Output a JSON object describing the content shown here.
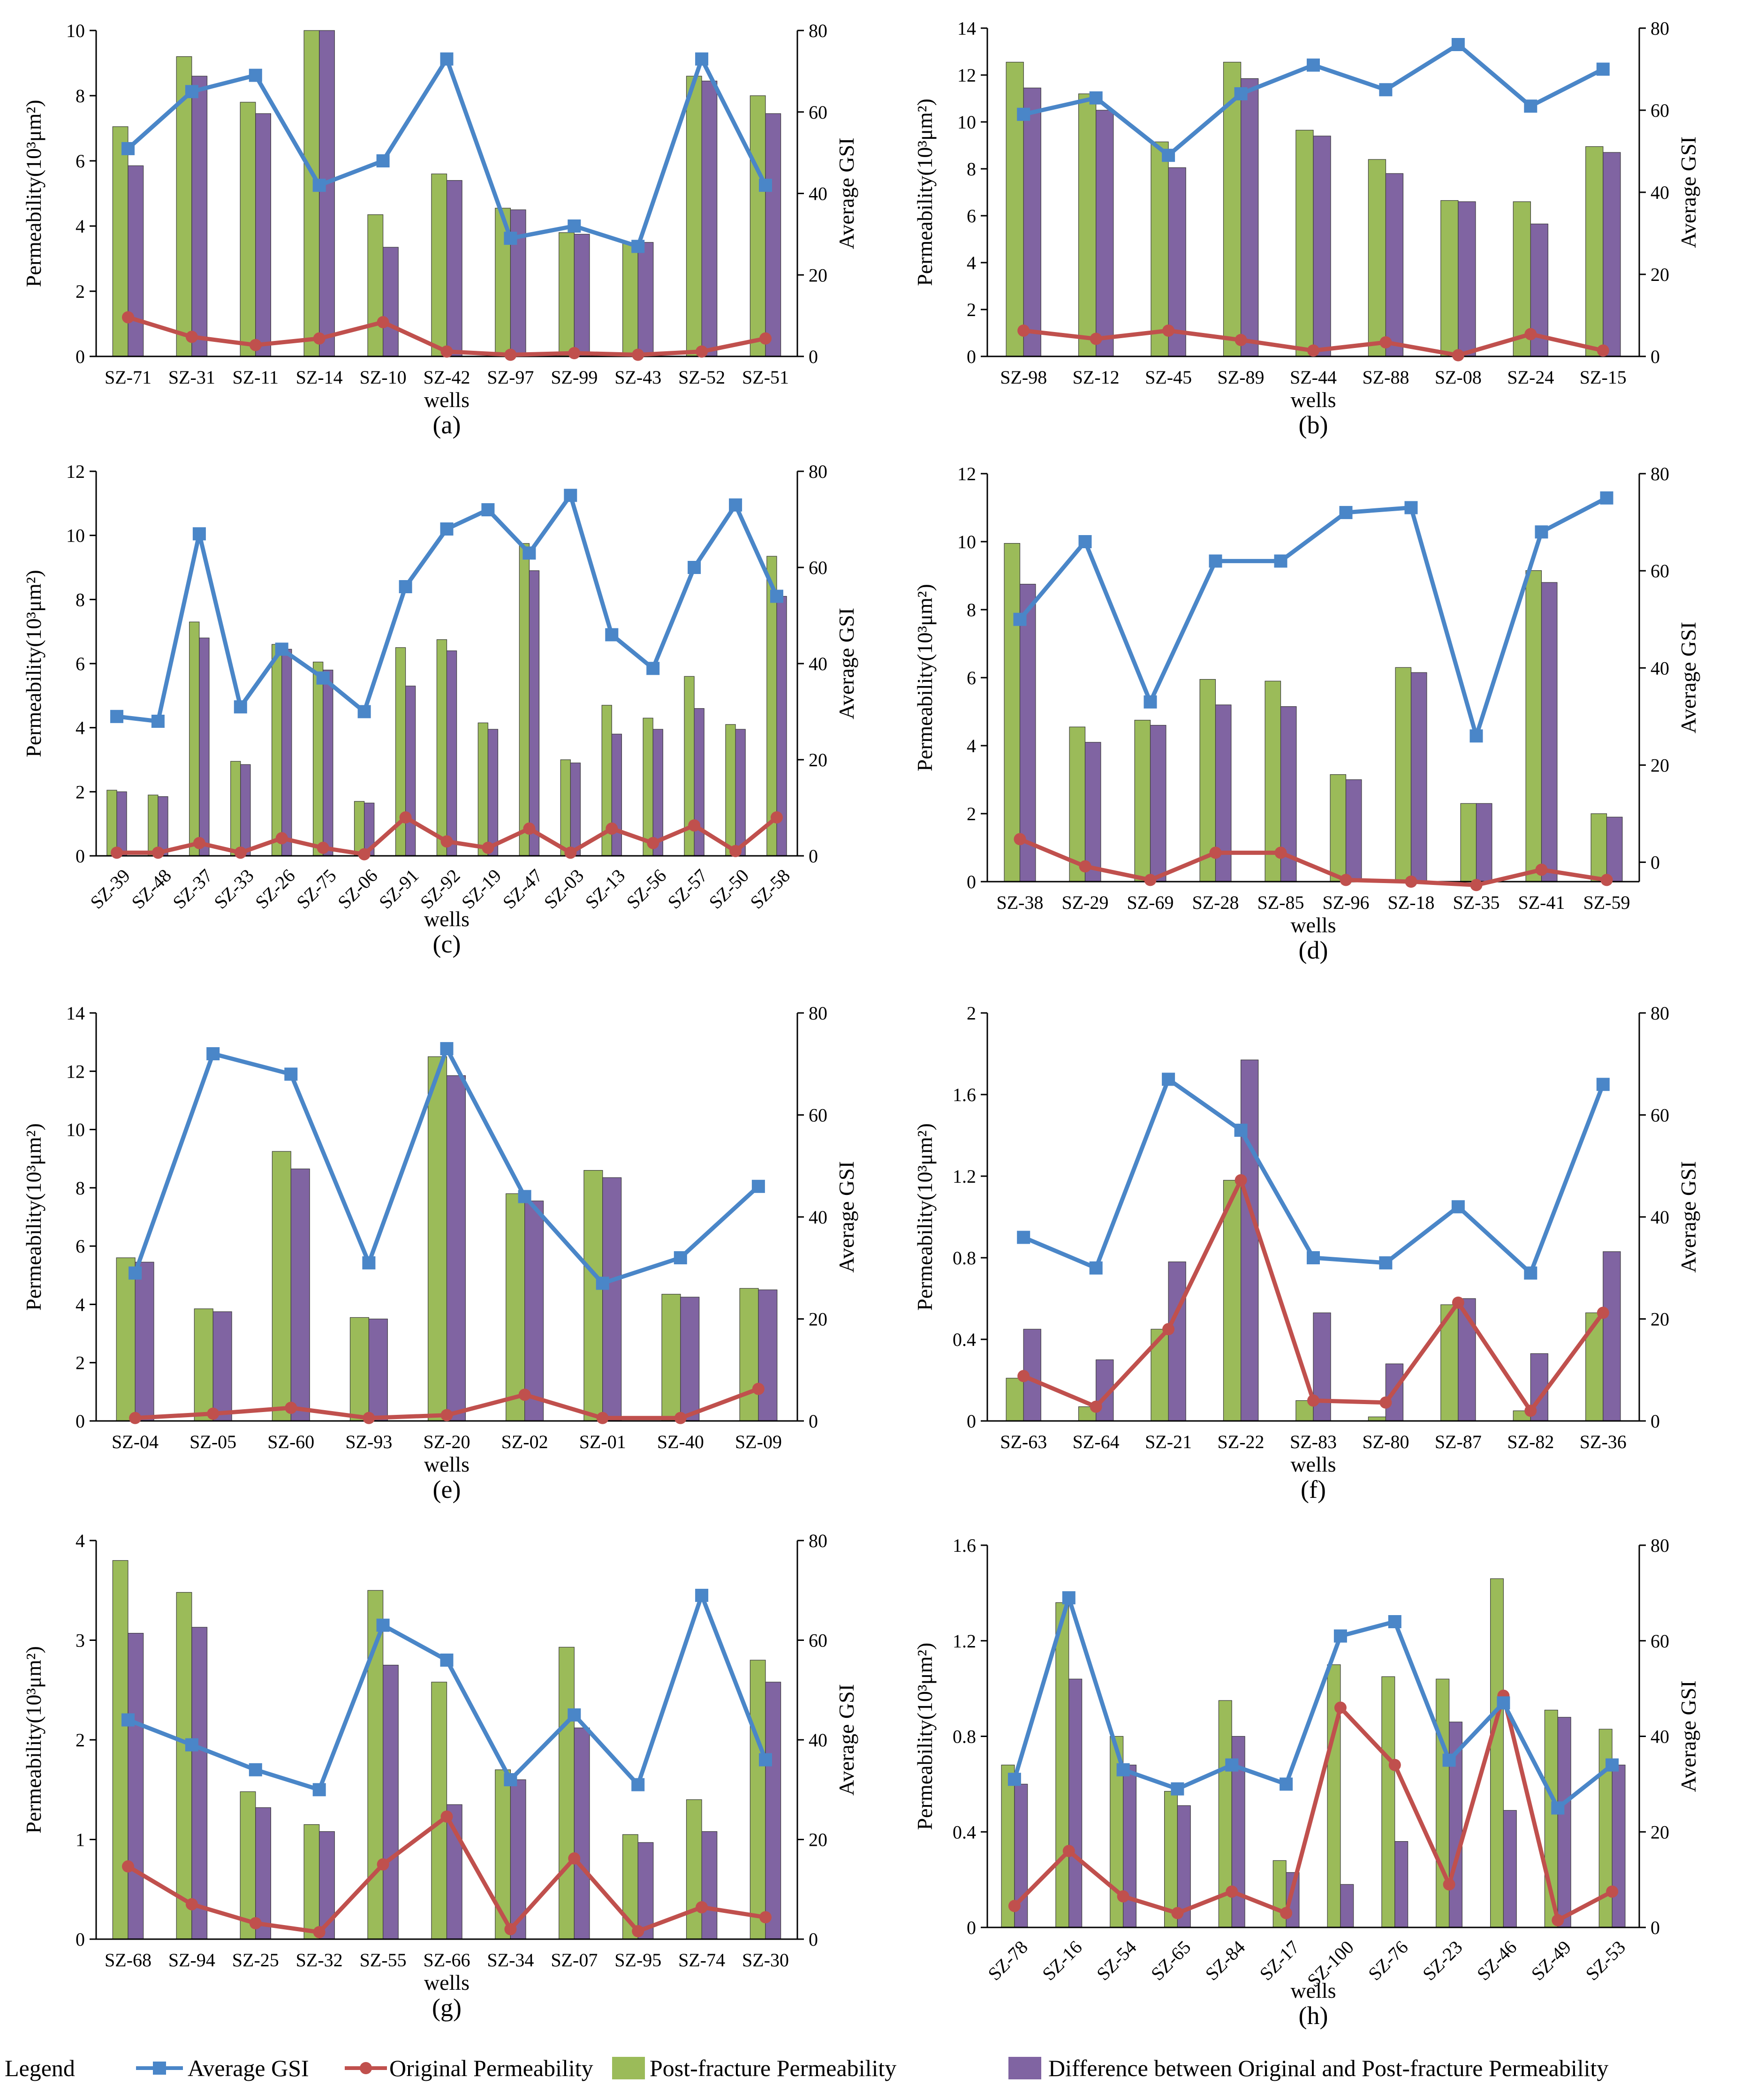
{
  "colors": {
    "gsi": "#4A86C8",
    "original": "#C0504D",
    "post": "#9BBB59",
    "difference": "#8064A2"
  },
  "legend": {
    "title": "Legend",
    "items": [
      {
        "key": "gsi",
        "label": "Average GSI"
      },
      {
        "key": "original",
        "label": "Original Permeability"
      },
      {
        "key": "post",
        "label": "Post-fracture Permeability"
      },
      {
        "key": "difference",
        "label": "Difference between Original and Post-fracture Permeability"
      }
    ]
  },
  "chart_data": [
    {
      "type": "bar+line",
      "label": "(a)",
      "xlabel": "wells",
      "ylabel_left": "Permeability(10³μm²)",
      "ylabel_right": "Average GSI",
      "ylim_left": [
        0,
        10
      ],
      "ylim_right": [
        0,
        80
      ],
      "left_ticks": [
        0,
        2,
        4,
        6,
        8,
        10
      ],
      "right_ticks": [
        0,
        20,
        40,
        60,
        80
      ],
      "categories": [
        "SZ-71",
        "SZ-31",
        "SZ-11",
        "SZ-14",
        "SZ-10",
        "SZ-42",
        "SZ-97",
        "SZ-99",
        "SZ-43",
        "SZ-52",
        "SZ-51"
      ],
      "post": [
        7.05,
        9.2,
        7.8,
        10.0,
        4.35,
        5.6,
        4.55,
        3.8,
        3.5,
        8.6,
        8.0
      ],
      "difference": [
        5.85,
        8.6,
        7.45,
        10.0,
        3.35,
        5.4,
        4.5,
        3.75,
        3.5,
        8.45,
        7.45
      ],
      "original": [
        1.2,
        0.6,
        0.35,
        0.55,
        1.05,
        0.15,
        0.05,
        0.1,
        0.05,
        0.15,
        0.55
      ],
      "gsi": [
        51,
        65,
        69,
        42,
        48,
        73,
        29,
        32,
        27,
        73,
        42
      ],
      "xlabel_rotated": false
    },
    {
      "type": "bar+line",
      "label": "(b)",
      "xlabel": "wells",
      "ylabel_left": "Permeability(10³μm²)",
      "ylabel_right": "Average GSI",
      "ylim_left": [
        0,
        14
      ],
      "ylim_right": [
        0,
        80
      ],
      "left_ticks": [
        0,
        2,
        4,
        6,
        8,
        10,
        12,
        14
      ],
      "right_ticks": [
        0,
        20,
        40,
        60,
        80
      ],
      "categories": [
        "SZ-98",
        "SZ-12",
        "SZ-45",
        "SZ-89",
        "SZ-44",
        "SZ-88",
        "SZ-08",
        "SZ-24",
        "SZ-15"
      ],
      "post": [
        12.55,
        11.2,
        9.15,
        12.55,
        9.65,
        8.4,
        6.65,
        6.6,
        8.95
      ],
      "difference": [
        11.45,
        10.5,
        8.05,
        11.85,
        9.4,
        7.8,
        6.6,
        5.65,
        8.7
      ],
      "original": [
        1.1,
        0.75,
        1.1,
        0.7,
        0.25,
        0.6,
        0.05,
        0.95,
        0.25
      ],
      "gsi": [
        59,
        63,
        49,
        64,
        71,
        65,
        76,
        61,
        70
      ],
      "xlabel_rotated": false
    },
    {
      "type": "bar+line",
      "label": "(c)",
      "xlabel": "wells",
      "ylabel_left": "Permeability(10³μm²)",
      "ylabel_right": "Average GSI",
      "ylim_left": [
        0,
        12
      ],
      "ylim_right": [
        0,
        80
      ],
      "left_ticks": [
        0,
        2,
        4,
        6,
        8,
        10,
        12
      ],
      "right_ticks": [
        0,
        20,
        40,
        60,
        80
      ],
      "categories": [
        "SZ-39",
        "SZ-48",
        "SZ-37",
        "SZ-33",
        "SZ-26",
        "SZ-75",
        "SZ-06",
        "SZ-91",
        "SZ-92",
        "SZ-19",
        "SZ-47",
        "SZ-03",
        "SZ-13",
        "SZ-56",
        "SZ-57",
        "SZ-50",
        "SZ-58"
      ],
      "post": [
        2.05,
        1.9,
        7.3,
        2.95,
        6.6,
        6.05,
        1.7,
        6.5,
        6.75,
        4.15,
        9.75,
        3.0,
        4.7,
        4.3,
        5.6,
        4.1,
        9.35
      ],
      "difference": [
        2.0,
        1.85,
        6.8,
        2.85,
        6.45,
        5.8,
        1.65,
        5.3,
        6.4,
        3.95,
        8.9,
        2.9,
        3.8,
        3.95,
        4.6,
        3.95,
        8.1
      ],
      "original": [
        0.1,
        0.1,
        0.4,
        0.1,
        0.55,
        0.25,
        0.05,
        1.2,
        0.45,
        0.25,
        0.85,
        0.1,
        0.85,
        0.4,
        0.95,
        0.15,
        1.2
      ],
      "gsi": [
        29,
        28,
        67,
        31,
        43,
        37,
        30,
        56,
        68,
        72,
        63,
        75,
        46,
        39,
        60,
        73,
        54
      ],
      "xlabel_rotated": true
    },
    {
      "type": "bar+line",
      "label": "(d)",
      "xlabel": "wells",
      "ylabel_left": "Permeability(10³μm²)",
      "ylabel_right": "Average GSI",
      "ylim_left": [
        0,
        12
      ],
      "ylim_right": [
        -4,
        80
      ],
      "left_ticks": [
        0,
        2,
        4,
        6,
        8,
        10,
        12
      ],
      "right_ticks": [
        0,
        20,
        40,
        60,
        80
      ],
      "categories": [
        "SZ-38",
        "SZ-29",
        "SZ-69",
        "SZ-28",
        "SZ-85",
        "SZ-96",
        "SZ-18",
        "SZ-35",
        "SZ-41",
        "SZ-59"
      ],
      "post": [
        9.95,
        4.55,
        4.75,
        5.95,
        5.9,
        3.15,
        6.3,
        2.3,
        9.15,
        2.0
      ],
      "difference": [
        8.75,
        4.1,
        4.6,
        5.2,
        5.15,
        3.0,
        6.15,
        2.3,
        8.8,
        1.9
      ],
      "original": [
        1.25,
        0.45,
        0.05,
        0.85,
        0.85,
        0.05,
        0.0,
        -0.1,
        0.35,
        0.05
      ],
      "gsi": [
        50,
        66,
        33,
        62,
        62,
        72,
        73,
        26,
        68,
        75
      ],
      "xlabel_rotated": false
    },
    {
      "type": "bar+line",
      "label": "(e)",
      "xlabel": "wells",
      "ylabel_left": "Permeability(10³μm²)",
      "ylabel_right": "Average GSI",
      "ylim_left": [
        0,
        14
      ],
      "ylim_right": [
        0,
        80
      ],
      "left_ticks": [
        0,
        2,
        4,
        6,
        8,
        10,
        12,
        14
      ],
      "right_ticks": [
        0,
        20,
        40,
        60,
        80
      ],
      "categories": [
        "SZ-04",
        "SZ-05",
        "SZ-60",
        "SZ-93",
        "SZ-20",
        "SZ-02",
        "SZ-01",
        "SZ-40",
        "SZ-09"
      ],
      "post": [
        5.6,
        3.85,
        9.25,
        3.55,
        12.5,
        7.8,
        8.6,
        4.35,
        4.55
      ],
      "difference": [
        5.45,
        3.75,
        8.65,
        3.5,
        11.85,
        7.55,
        8.35,
        4.25,
        4.5
      ],
      "original": [
        0.1,
        0.25,
        0.45,
        0.1,
        0.2,
        0.9,
        0.1,
        0.1,
        1.1
      ],
      "gsi": [
        29,
        72,
        68,
        31,
        73,
        44,
        27,
        32,
        46
      ],
      "xlabel_rotated": false
    },
    {
      "type": "bar+line",
      "label": "(f)",
      "xlabel": "wells",
      "ylabel_left": "Permeability(10³μm²)",
      "ylabel_right": "Average GSI",
      "ylim_left": [
        0,
        2
      ],
      "ylim_right": [
        0,
        80
      ],
      "left_ticks": [
        0,
        0.4,
        0.8,
        1.2,
        1.6,
        2
      ],
      "right_ticks": [
        0,
        20,
        40,
        60,
        80
      ],
      "categories": [
        "SZ-63",
        "SZ-64",
        "SZ-21",
        "SZ-22",
        "SZ-83",
        "SZ-80",
        "SZ-87",
        "SZ-82",
        "SZ-36"
      ],
      "post": [
        0.21,
        0.07,
        0.45,
        1.18,
        0.1,
        0.02,
        0.57,
        0.05,
        0.53
      ],
      "difference": [
        0.45,
        0.3,
        0.78,
        1.77,
        0.53,
        0.28,
        0.6,
        0.33,
        0.83
      ],
      "original": [
        0.22,
        0.07,
        0.45,
        1.18,
        0.1,
        0.09,
        0.58,
        0.05,
        0.53
      ],
      "gsi": [
        36,
        30,
        67,
        57,
        32,
        31,
        42,
        29,
        66
      ],
      "xlabel_rotated": false
    },
    {
      "type": "bar+line",
      "label": "(g)",
      "xlabel": "wells",
      "ylabel_left": "Permeability(10³μm²)",
      "ylabel_right": "Average GSI",
      "ylim_left": [
        0,
        4
      ],
      "ylim_right": [
        0,
        80
      ],
      "left_ticks": [
        0,
        1,
        2,
        3,
        4
      ],
      "right_ticks": [
        0,
        20,
        40,
        60,
        80
      ],
      "categories": [
        "SZ-68",
        "SZ-94",
        "SZ-25",
        "SZ-32",
        "SZ-55",
        "SZ-66",
        "SZ-34",
        "SZ-07",
        "SZ-95",
        "SZ-74",
        "SZ-30"
      ],
      "post": [
        3.8,
        3.48,
        1.48,
        1.15,
        3.5,
        2.58,
        1.7,
        2.93,
        1.05,
        1.4,
        2.8
      ],
      "difference": [
        3.07,
        3.13,
        1.32,
        1.08,
        2.75,
        1.35,
        1.6,
        2.12,
        0.97,
        1.08,
        2.58
      ],
      "original": [
        0.73,
        0.35,
        0.16,
        0.07,
        0.75,
        1.23,
        0.1,
        0.81,
        0.08,
        0.32,
        0.22
      ],
      "gsi": [
        44,
        39,
        34,
        30,
        63,
        56,
        32,
        45,
        31,
        69,
        36
      ],
      "xlabel_rotated": false
    },
    {
      "type": "bar+line",
      "label": "(h)",
      "xlabel": "wells",
      "ylabel_left": "Permeability(10³μm²)",
      "ylabel_right": "Average GSI",
      "ylim_left": [
        0,
        1.6
      ],
      "ylim_right": [
        0,
        80
      ],
      "left_ticks": [
        0,
        0.4,
        0.8,
        1.2,
        1.6
      ],
      "right_ticks": [
        0,
        20,
        40,
        60,
        80
      ],
      "categories": [
        "SZ-78",
        "SZ-16",
        "SZ-54",
        "SZ-65",
        "SZ-84",
        "SZ-17",
        "SZ-100",
        "SZ-76",
        "SZ-23",
        "SZ-46",
        "SZ-49",
        "SZ-53"
      ],
      "post": [
        0.68,
        1.36,
        0.8,
        0.57,
        0.95,
        0.28,
        1.1,
        1.05,
        1.04,
        1.46,
        0.91,
        0.83
      ],
      "difference": [
        0.6,
        1.04,
        0.68,
        0.51,
        0.8,
        0.23,
        0.18,
        0.36,
        0.86,
        0.49,
        0.88,
        0.68
      ],
      "original": [
        0.09,
        0.32,
        0.13,
        0.06,
        0.15,
        0.06,
        0.92,
        0.68,
        0.18,
        0.97,
        0.03,
        0.15
      ],
      "gsi": [
        31,
        69,
        33,
        29,
        34,
        30,
        61,
        64,
        35,
        47,
        25,
        34
      ],
      "xlabel_rotated": true
    }
  ]
}
